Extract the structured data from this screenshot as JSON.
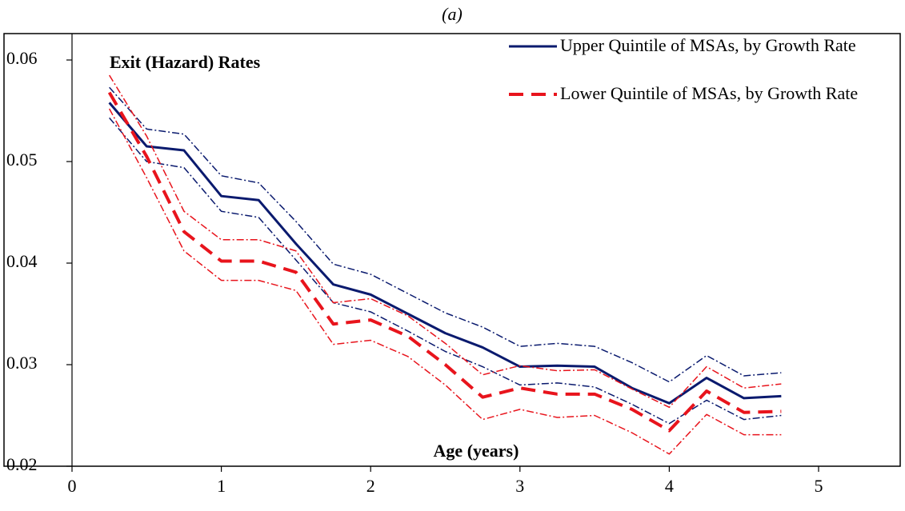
{
  "chart_data": {
    "type": "line",
    "title": "(a)",
    "annotation": "Exit (Hazard) Rates",
    "x_label": "Age (years)",
    "x": [
      0.25,
      0.5,
      0.75,
      1,
      1.25,
      1.5,
      1.75,
      2,
      2.25,
      2.5,
      2.75,
      3,
      3.25,
      3.5,
      3.75,
      4,
      4.25,
      4.5,
      4.75
    ],
    "series": [
      {
        "name": "Upper Quintile of MSAs, by Growth Rate",
        "color": "#0a1a6e",
        "line_style": "solid",
        "values": [
          0.0558,
          0.0515,
          0.0511,
          0.0466,
          0.0462,
          0.0419,
          0.0379,
          0.0369,
          0.035,
          0.0331,
          0.0317,
          0.0298,
          0.0299,
          0.0298,
          0.0277,
          0.0262,
          0.0287,
          0.0267,
          0.0269
        ],
        "upper": [
          0.0573,
          0.0532,
          0.0527,
          0.0486,
          0.0479,
          0.0441,
          0.0399,
          0.0389,
          0.037,
          0.0351,
          0.0337,
          0.0318,
          0.0321,
          0.0318,
          0.0302,
          0.0283,
          0.0309,
          0.0289,
          0.0292
        ],
        "lower": [
          0.0543,
          0.05,
          0.0494,
          0.0451,
          0.0445,
          0.0403,
          0.0361,
          0.0352,
          0.0333,
          0.0313,
          0.0298,
          0.028,
          0.0282,
          0.0278,
          0.0261,
          0.0242,
          0.0265,
          0.0246,
          0.025
        ]
      },
      {
        "name": "Lower Quintile of MSAs, by Growth Rate",
        "color": "#e8141c",
        "line_style": "dashed",
        "values": [
          0.0568,
          0.0505,
          0.0431,
          0.0402,
          0.0402,
          0.0391,
          0.034,
          0.0344,
          0.0328,
          0.03,
          0.0268,
          0.0277,
          0.0271,
          0.0271,
          0.0256,
          0.0235,
          0.0274,
          0.0253,
          0.0254
        ],
        "upper": [
          0.0585,
          0.0525,
          0.0451,
          0.0423,
          0.0423,
          0.0412,
          0.0361,
          0.0365,
          0.0348,
          0.0321,
          0.029,
          0.0299,
          0.0294,
          0.0295,
          0.0276,
          0.0258,
          0.0298,
          0.0277,
          0.0281
        ],
        "lower": [
          0.0552,
          0.0484,
          0.0412,
          0.0383,
          0.0383,
          0.0373,
          0.032,
          0.0324,
          0.0308,
          0.028,
          0.0246,
          0.0256,
          0.0248,
          0.025,
          0.0233,
          0.0212,
          0.0251,
          0.0231,
          0.0231
        ]
      }
    ],
    "xlim": [
      0,
      5
    ],
    "xticks": [
      0,
      1,
      2,
      3,
      4,
      5
    ],
    "ylim": [
      0.02,
      0.0626
    ],
    "yticks": [
      0.02,
      0.03,
      0.04,
      0.05,
      0.06
    ],
    "legend": "upper right",
    "grid": false
  }
}
